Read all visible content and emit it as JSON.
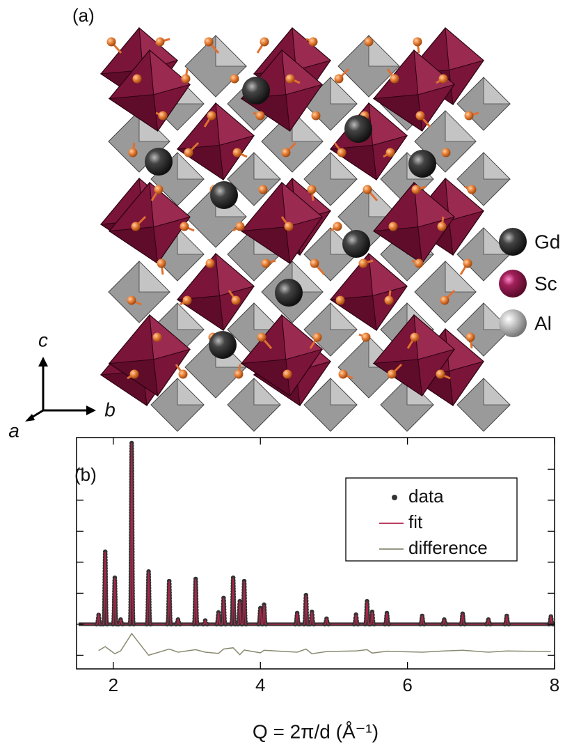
{
  "panel_a": {
    "label": "(a)",
    "legend": [
      "Gd",
      "Sc",
      "Al"
    ],
    "axes": [
      "c",
      "b",
      "a"
    ]
  },
  "chart_data": {
    "type": "line",
    "panel_label": "(b)",
    "xlabel": "Q = 2π/d (Å⁻¹)",
    "x": [
      1.8,
      1.89,
      2.02,
      2.1,
      2.25,
      2.48,
      2.76,
      2.88,
      3.12,
      3.25,
      3.43,
      3.5,
      3.63,
      3.72,
      3.78,
      4.0,
      4.05,
      4.5,
      4.62,
      4.7,
      4.9,
      5.3,
      5.45,
      5.52,
      5.72,
      6.2,
      6.5,
      6.75,
      7.1,
      7.35,
      7.95
    ],
    "series": [
      {
        "name": "data",
        "color": "#333333",
        "values": [
          0.3,
          2.34,
          1.5,
          0.15,
          5.84,
          1.7,
          1.39,
          0.15,
          1.46,
          0.12,
          0.38,
          0.85,
          1.5,
          0.74,
          1.39,
          0.52,
          0.63,
          0.36,
          0.94,
          0.4,
          0.18,
          0.31,
          0.74,
          0.4,
          0.36,
          0.27,
          0.15,
          0.34,
          0.15,
          0.27,
          0.25
        ]
      },
      {
        "name": "fit",
        "color": "#b0254a",
        "values": [
          0.3,
          2.34,
          1.5,
          0.15,
          5.84,
          1.7,
          1.39,
          0.15,
          1.46,
          0.12,
          0.38,
          0.85,
          1.5,
          0.74,
          1.39,
          0.52,
          0.63,
          0.36,
          0.94,
          0.4,
          0.18,
          0.31,
          0.74,
          0.4,
          0.36,
          0.27,
          0.15,
          0.34,
          0.15,
          0.27,
          0.25
        ]
      },
      {
        "name": "difference",
        "color": "#8a8a72",
        "values": [
          -0.85,
          -0.72,
          -0.95,
          -0.86,
          -0.3,
          -1.0,
          -0.8,
          -0.9,
          -0.82,
          -0.9,
          -0.94,
          -0.8,
          -0.76,
          -0.98,
          -0.83,
          -0.92,
          -0.84,
          -0.9,
          -0.8,
          -0.95,
          -0.88,
          -0.86,
          -0.82,
          -0.93,
          -0.87,
          -0.9,
          -0.86,
          -0.84,
          -0.9,
          -0.86,
          -0.88
        ]
      }
    ],
    "xlim": [
      1.5,
      8
    ],
    "xticks": [
      2,
      4,
      6,
      8
    ],
    "ylim": [
      -1.44,
      6.02
    ],
    "yticks": [
      -1,
      0,
      1,
      2,
      3,
      4,
      5
    ],
    "legend": "upper right"
  }
}
